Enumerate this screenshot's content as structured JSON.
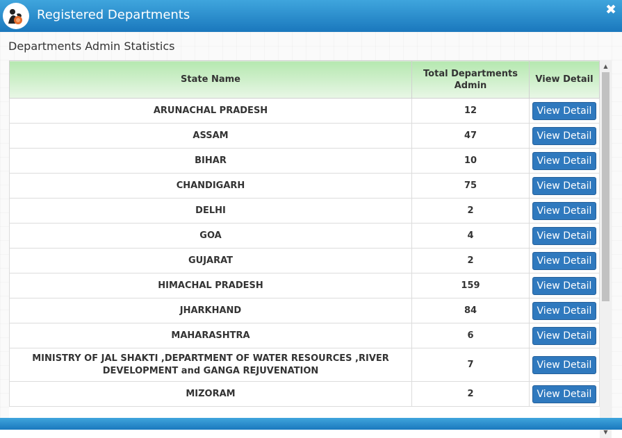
{
  "window": {
    "title": "Registered Departments",
    "close_glyph": "✖"
  },
  "section": {
    "title": "Departments Admin Statistics"
  },
  "table": {
    "headers": {
      "state": "State Name",
      "total": "Total Departments Admin",
      "view": "View Detail"
    },
    "button_label": "View Detail",
    "rows": [
      {
        "state": "ARUNACHAL PRADESH",
        "total": "12"
      },
      {
        "state": "ASSAM",
        "total": "47"
      },
      {
        "state": "BIHAR",
        "total": "10"
      },
      {
        "state": "CHANDIGARH",
        "total": "75"
      },
      {
        "state": "DELHI",
        "total": "2"
      },
      {
        "state": "GOA",
        "total": "4"
      },
      {
        "state": "GUJARAT",
        "total": "2"
      },
      {
        "state": "HIMACHAL PRADESH",
        "total": "159"
      },
      {
        "state": "JHARKHAND",
        "total": "84"
      },
      {
        "state": "MAHARASHTRA",
        "total": "6"
      },
      {
        "state": "MINISTRY OF JAL SHAKTI ,DEPARTMENT OF WATER RESOURCES ,RIVER DEVELOPMENT and GANGA REJUVENATION",
        "total": "7"
      },
      {
        "state": "MIZORAM",
        "total": "2"
      }
    ]
  },
  "colors": {
    "titlebar": "#1a78bd",
    "header_green": "#b5e8b0",
    "button": "#2f79be"
  },
  "icons": {
    "logo": "person-hand-logo-icon",
    "close": "close-icon"
  }
}
